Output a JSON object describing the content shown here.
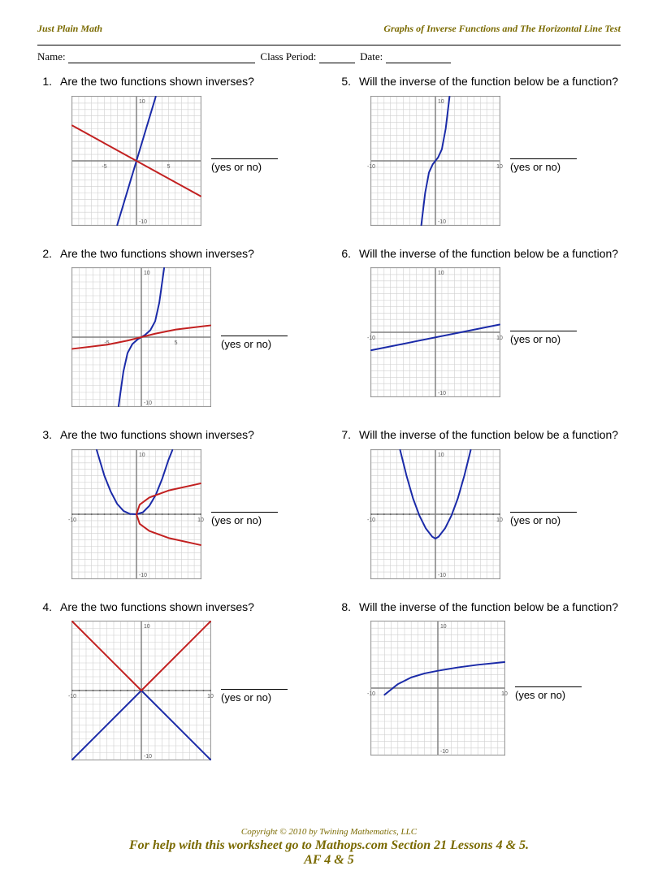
{
  "header": {
    "brand": "Just Plain Math",
    "title": "Graphs of Inverse Functions and The Horizontal Line Test"
  },
  "meta": {
    "name_label": "Name:",
    "period_label": "Class Period:",
    "date_label": "Date:"
  },
  "answer_hint": "(yes or no)",
  "questions": {
    "type_a": "Are the two functions shown inverses?",
    "type_b": "Will the inverse of the function below be a function?"
  },
  "graph_style": {
    "size": 160,
    "xlim": [
      -10,
      10
    ],
    "ylim": [
      -10,
      10
    ],
    "xtick_major": [
      -10,
      -5,
      5,
      10
    ],
    "ytick_major": [
      -10,
      10
    ],
    "grid_color": "#cfcfcf",
    "axis_color": "#808080",
    "axis_width": 1.5,
    "curve_width": 2,
    "blue": "#1a2aa8",
    "red": "#c22020",
    "label_fontsize": 7,
    "label_color": "#555555",
    "background": "#ffffff"
  },
  "problems": [
    {
      "num": "1.",
      "q": "type_a",
      "curves": [
        {
          "kind": "line",
          "color": "blue",
          "points": [
            [
              -3,
              -10
            ],
            [
              3,
              10
            ]
          ]
        },
        {
          "kind": "line",
          "color": "red",
          "points": [
            [
              -10,
              5.5
            ],
            [
              10,
              -5.5
            ]
          ]
        }
      ],
      "xlabels": [
        -5,
        5
      ]
    },
    {
      "num": "5.",
      "q": "type_b",
      "curves": [
        {
          "kind": "poly",
          "color": "blue",
          "points": [
            [
              -2.2,
              -10
            ],
            [
              -1.6,
              -5
            ],
            [
              -1,
              -1.8
            ],
            [
              -0.4,
              -0.5
            ],
            [
              0,
              0
            ],
            [
              0.4,
              0.5
            ],
            [
              1,
              1.8
            ],
            [
              1.6,
              5
            ],
            [
              2.2,
              10
            ]
          ]
        }
      ],
      "xlabels": [
        -10,
        10
      ]
    },
    {
      "num": "2.",
      "q": "type_a",
      "curves": [
        {
          "kind": "poly",
          "color": "blue",
          "points": [
            [
              -3.3,
              -10
            ],
            [
              -2.6,
              -5
            ],
            [
              -2,
              -2.3
            ],
            [
              -1.3,
              -1
            ],
            [
              -0.5,
              -0.3
            ],
            [
              0,
              0
            ],
            [
              0.5,
              0.3
            ],
            [
              1.3,
              1
            ],
            [
              2,
              2.3
            ],
            [
              2.6,
              5
            ],
            [
              3.3,
              10
            ]
          ]
        },
        {
          "kind": "poly",
          "color": "red",
          "points": [
            [
              -10,
              -1.7
            ],
            [
              -5,
              -1.1
            ],
            [
              -2,
              -0.5
            ],
            [
              0,
              0
            ],
            [
              2,
              0.5
            ],
            [
              5,
              1.1
            ],
            [
              10,
              1.7
            ]
          ]
        }
      ],
      "xlabels": [
        -5,
        5
      ],
      "size": 172
    },
    {
      "num": "6.",
      "q": "type_b",
      "curves": [
        {
          "kind": "line",
          "color": "blue",
          "points": [
            [
              -10,
              -2.8
            ],
            [
              10,
              1.2
            ]
          ]
        }
      ],
      "xlabels": [
        -10,
        10
      ]
    },
    {
      "num": "3.",
      "q": "type_a",
      "curves": [
        {
          "kind": "poly",
          "color": "blue",
          "points": [
            [
              -6.2,
              10
            ],
            [
              -5,
              6
            ],
            [
              -4,
              3.5
            ],
            [
              -3,
              1.6
            ],
            [
              -2,
              0.5
            ],
            [
              -1,
              0.05
            ],
            [
              0,
              0
            ],
            [
              1,
              0.3
            ],
            [
              2,
              1.3
            ],
            [
              3,
              3
            ],
            [
              4,
              5.5
            ],
            [
              5,
              8.5
            ],
            [
              5.6,
              10
            ]
          ]
        },
        {
          "kind": "poly",
          "color": "red",
          "points": [
            [
              0,
              0
            ],
            [
              0.5,
              1.5
            ],
            [
              2,
              2.6
            ],
            [
              5,
              3.7
            ],
            [
              10,
              4.8
            ]
          ]
        },
        {
          "kind": "poly",
          "color": "red",
          "points": [
            [
              0,
              0
            ],
            [
              0.5,
              -1.5
            ],
            [
              2,
              -2.6
            ],
            [
              5,
              -3.7
            ],
            [
              10,
              -4.8
            ]
          ]
        }
      ],
      "xlabels": [
        -10,
        10
      ],
      "dense_x": true
    },
    {
      "num": "7.",
      "q": "type_b",
      "curves": [
        {
          "kind": "poly",
          "color": "blue",
          "points": [
            [
              -5.5,
              10
            ],
            [
              -4.5,
              6
            ],
            [
              -3.5,
              2.5
            ],
            [
              -2.5,
              -0.2
            ],
            [
              -1.5,
              -2.2
            ],
            [
              -0.5,
              -3.5
            ],
            [
              0,
              -3.8
            ],
            [
              0.5,
              -3.5
            ],
            [
              1.5,
              -2.2
            ],
            [
              2.5,
              -0.2
            ],
            [
              3.5,
              2.5
            ],
            [
              4.5,
              6
            ],
            [
              5.5,
              10
            ]
          ]
        }
      ],
      "xlabels": [
        -10,
        10
      ],
      "dense_x": true
    },
    {
      "num": "4.",
      "q": "type_a",
      "curves": [
        {
          "kind": "line",
          "color": "blue",
          "points": [
            [
              -10,
              -10
            ],
            [
              0,
              0
            ]
          ]
        },
        {
          "kind": "line",
          "color": "blue",
          "points": [
            [
              0,
              0
            ],
            [
              10,
              -10
            ]
          ]
        },
        {
          "kind": "line",
          "color": "red",
          "points": [
            [
              -10,
              10
            ],
            [
              0,
              0
            ]
          ]
        },
        {
          "kind": "line",
          "color": "red",
          "points": [
            [
              0,
              0
            ],
            [
              10,
              10
            ]
          ]
        }
      ],
      "xlabels": [
        -10,
        10
      ],
      "dense_x": true,
      "size": 172
    },
    {
      "num": "8.",
      "q": "type_b",
      "curves": [
        {
          "kind": "poly",
          "color": "blue",
          "points": [
            [
              -8,
              -1
            ],
            [
              -7,
              -0.2
            ],
            [
              -6,
              0.6
            ],
            [
              -4,
              1.6
            ],
            [
              -2,
              2.2
            ],
            [
              0,
              2.6
            ],
            [
              3,
              3.1
            ],
            [
              6,
              3.5
            ],
            [
              10,
              3.9
            ]
          ]
        }
      ],
      "xlabels": [
        -10,
        10
      ],
      "size": 166
    }
  ],
  "footer": {
    "copyright": "Copyright © 2010 by Twining Mathematics, LLC",
    "help": "For help with this worksheet go to Mathops.com Section 21 Lessons 4 & 5.",
    "af": "AF 4 & 5"
  }
}
